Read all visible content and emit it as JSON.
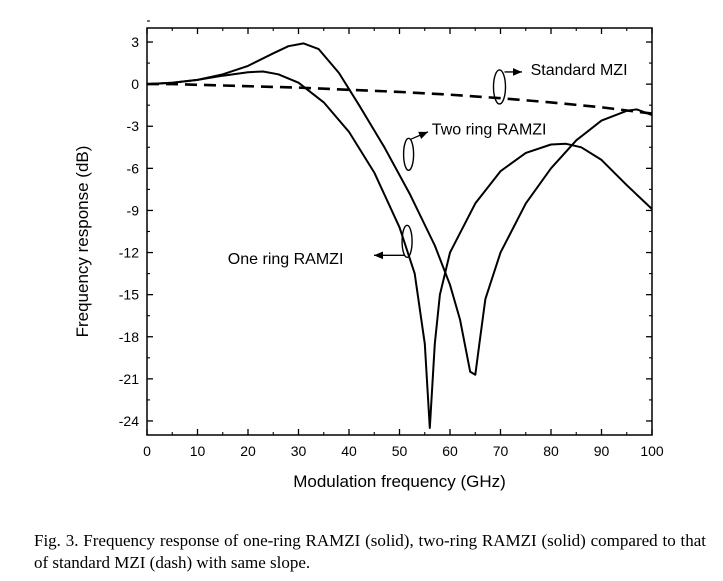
{
  "caption": "Fig. 3.   Frequency response of one-ring RAMZI (solid), two-ring RAMZI (solid) compared to that of standard MZI (dash) with same slope.",
  "chart_data": {
    "type": "line",
    "xlabel": "Modulation frequency (GHz)",
    "ylabel": "Frequency response (dB)",
    "xlim": [
      0,
      100
    ],
    "ylim": [
      -25,
      4
    ],
    "xticks": [
      0,
      10,
      20,
      30,
      40,
      50,
      60,
      70,
      80,
      90,
      100
    ],
    "yticks": [
      3,
      0,
      -3,
      -6,
      -9,
      -12,
      -15,
      -18,
      -21,
      -24
    ],
    "grid": false,
    "legend": "none",
    "series": [
      {
        "name": "Standard MZI",
        "style": "dash",
        "points": [
          [
            0,
            0
          ],
          [
            5,
            0
          ],
          [
            10,
            -0.05
          ],
          [
            15,
            -0.1
          ],
          [
            20,
            -0.15
          ],
          [
            30,
            -0.25
          ],
          [
            40,
            -0.4
          ],
          [
            50,
            -0.55
          ],
          [
            60,
            -0.75
          ],
          [
            70,
            -1.0
          ],
          [
            80,
            -1.3
          ],
          [
            90,
            -1.65
          ],
          [
            100,
            -2.1
          ]
        ]
      },
      {
        "name": "One ring RAMZI",
        "style": "solid",
        "points": [
          [
            0,
            0
          ],
          [
            5,
            0.1
          ],
          [
            10,
            0.3
          ],
          [
            15,
            0.6
          ],
          [
            20,
            0.85
          ],
          [
            23,
            0.9
          ],
          [
            26,
            0.7
          ],
          [
            30,
            0.1
          ],
          [
            35,
            -1.3
          ],
          [
            40,
            -3.4
          ],
          [
            45,
            -6.3
          ],
          [
            50,
            -10.2
          ],
          [
            53,
            -13.5
          ],
          [
            55,
            -18.5
          ],
          [
            56,
            -24.5
          ],
          [
            57,
            -18.5
          ],
          [
            58,
            -15
          ],
          [
            60,
            -12
          ],
          [
            65,
            -8.5
          ],
          [
            70,
            -6.2
          ],
          [
            75,
            -4.9
          ],
          [
            80,
            -4.3
          ],
          [
            83,
            -4.25
          ],
          [
            86,
            -4.5
          ],
          [
            90,
            -5.4
          ],
          [
            95,
            -7.2
          ],
          [
            100,
            -8.9
          ]
        ]
      },
      {
        "name": "Two ring RAMZI",
        "style": "solid",
        "points": [
          [
            0,
            0
          ],
          [
            5,
            0.1
          ],
          [
            10,
            0.3
          ],
          [
            15,
            0.7
          ],
          [
            20,
            1.3
          ],
          [
            25,
            2.2
          ],
          [
            28,
            2.7
          ],
          [
            31,
            2.9
          ],
          [
            34,
            2.5
          ],
          [
            38,
            0.8
          ],
          [
            42,
            -1.5
          ],
          [
            47,
            -4.5
          ],
          [
            52,
            -7.8
          ],
          [
            57,
            -11.5
          ],
          [
            60,
            -14.3
          ],
          [
            62,
            -16.8
          ],
          [
            64,
            -20.5
          ],
          [
            65,
            -20.7
          ],
          [
            66,
            -18
          ],
          [
            67,
            -15.3
          ],
          [
            70,
            -12
          ],
          [
            75,
            -8.5
          ],
          [
            80,
            -6
          ],
          [
            85,
            -4
          ],
          [
            90,
            -2.6
          ],
          [
            95,
            -1.9
          ],
          [
            97,
            -1.8
          ],
          [
            100,
            -2.2
          ]
        ]
      }
    ],
    "annotations": [
      {
        "text": "Standard MZI",
        "x": 72,
        "y": 1.0
      },
      {
        "text": "Two ring RAMZI",
        "x": 56,
        "y": -3.5
      },
      {
        "text": "One ring RAMZI",
        "x": 16,
        "y": -12.6
      }
    ]
  }
}
